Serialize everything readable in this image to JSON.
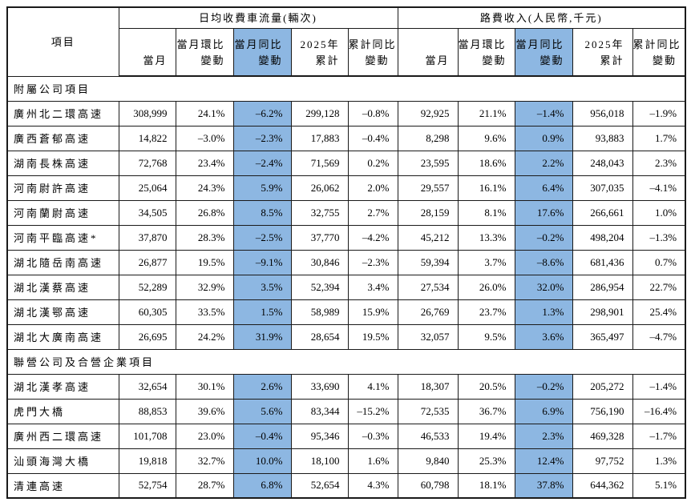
{
  "colors": {
    "highlight_blue": "#8db7e2",
    "border": "#1a1a1a",
    "text": "#000000",
    "background": "#ffffff"
  },
  "table": {
    "corner_header": "項目",
    "groups": [
      {
        "title": "日均收費車流量(輛次)"
      },
      {
        "title": "路費收入(人民幣,千元)"
      }
    ],
    "sub_columns": [
      {
        "line1": "",
        "line2": "當月",
        "highlight": false
      },
      {
        "line1": "當月環比",
        "line2": "變動",
        "highlight": false
      },
      {
        "line1": "當月同比",
        "line2": "變動",
        "highlight": true
      },
      {
        "line1": "2025年",
        "line2": "累計",
        "highlight": false
      },
      {
        "line1": "累計同比",
        "line2": "變動",
        "highlight": false
      }
    ],
    "sections": [
      {
        "label": "附屬公司項目",
        "rows": [
          {
            "name": "廣州北二環高速",
            "values": [
              "308,999",
              "24.1%",
              "–6.2%",
              "299,128",
              "–0.8%",
              "92,925",
              "21.1%",
              "–1.4%",
              "956,018",
              "–1.9%"
            ]
          },
          {
            "name": "廣西蒼郁高速",
            "values": [
              "14,822",
              "–3.0%",
              "–2.3%",
              "17,883",
              "–0.4%",
              "8,298",
              "9.6%",
              "0.9%",
              "93,883",
              "1.7%"
            ]
          },
          {
            "name": "湖南長株高速",
            "values": [
              "72,768",
              "23.4%",
              "–2.4%",
              "71,569",
              "0.2%",
              "23,595",
              "18.6%",
              "2.2%",
              "248,043",
              "2.3%"
            ]
          },
          {
            "name": "河南尉許高速",
            "values": [
              "25,064",
              "24.3%",
              "5.9%",
              "26,062",
              "2.0%",
              "29,557",
              "16.1%",
              "6.4%",
              "307,035",
              "–4.1%"
            ]
          },
          {
            "name": "河南蘭尉高速",
            "values": [
              "34,505",
              "26.8%",
              "8.5%",
              "32,755",
              "2.7%",
              "28,159",
              "8.1%",
              "17.6%",
              "266,661",
              "1.0%"
            ]
          },
          {
            "name": "河南平臨高速*",
            "values": [
              "37,870",
              "28.3%",
              "–2.5%",
              "37,770",
              "–4.2%",
              "45,212",
              "13.3%",
              "–0.2%",
              "498,204",
              "–1.3%"
            ]
          },
          {
            "name": "湖北隨岳南高速",
            "values": [
              "26,877",
              "19.5%",
              "–9.1%",
              "30,846",
              "–2.3%",
              "59,394",
              "3.7%",
              "–8.6%",
              "681,436",
              "0.7%"
            ]
          },
          {
            "name": "湖北漢蔡高速",
            "values": [
              "52,289",
              "32.9%",
              "3.5%",
              "52,394",
              "3.4%",
              "27,534",
              "26.0%",
              "32.0%",
              "286,954",
              "22.7%"
            ]
          },
          {
            "name": "湖北漢鄂高速",
            "values": [
              "60,305",
              "33.5%",
              "1.5%",
              "58,989",
              "15.9%",
              "26,769",
              "23.7%",
              "1.3%",
              "298,901",
              "25.4%"
            ]
          },
          {
            "name": "湖北大廣南高速",
            "values": [
              "26,695",
              "24.2%",
              "31.9%",
              "28,654",
              "19.5%",
              "32,057",
              "9.5%",
              "3.6%",
              "365,497",
              "–4.7%"
            ]
          }
        ]
      },
      {
        "label": "聯營公司及合營企業項目",
        "rows": [
          {
            "name": "湖北漢孝高速",
            "values": [
              "32,654",
              "30.1%",
              "2.6%",
              "33,690",
              "4.1%",
              "18,307",
              "20.5%",
              "–0.2%",
              "205,272",
              "–1.4%"
            ]
          },
          {
            "name": "虎門大橋",
            "values": [
              "88,853",
              "39.6%",
              "5.6%",
              "83,344",
              "–15.2%",
              "72,535",
              "36.7%",
              "6.9%",
              "756,190",
              "–16.4%"
            ]
          },
          {
            "name": "廣州西二環高速",
            "values": [
              "101,708",
              "23.0%",
              "–0.4%",
              "95,346",
              "–0.3%",
              "46,533",
              "19.4%",
              "2.3%",
              "469,328",
              "–1.7%"
            ]
          },
          {
            "name": "汕頭海灣大橋",
            "values": [
              "19,818",
              "32.7%",
              "10.0%",
              "18,100",
              "1.6%",
              "9,840",
              "25.3%",
              "12.4%",
              "97,752",
              "1.3%"
            ]
          },
          {
            "name": "清連高速",
            "values": [
              "52,754",
              "28.7%",
              "6.8%",
              "52,654",
              "4.3%",
              "60,798",
              "18.1%",
              "37.8%",
              "644,362",
              "5.1%"
            ]
          }
        ]
      }
    ]
  }
}
